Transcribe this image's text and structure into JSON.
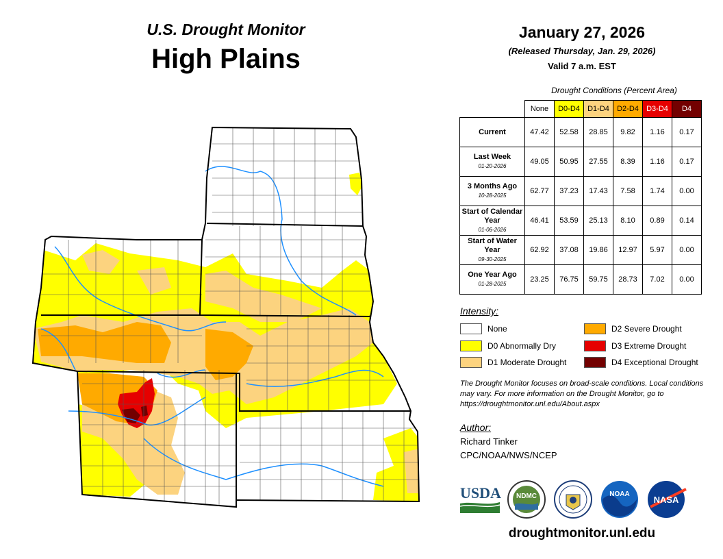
{
  "header": {
    "title": "U.S. Drought Monitor",
    "region": "High Plains"
  },
  "release": {
    "date": "January 27, 2026",
    "released": "(Released Thursday, Jan. 29, 2026)",
    "valid": "Valid 7 a.m. EST"
  },
  "table": {
    "caption": "Drought Conditions (Percent Area)",
    "columns": [
      "None",
      "D0-D4",
      "D1-D4",
      "D2-D4",
      "D3-D4",
      "D4"
    ],
    "column_colors": [
      "#ffffff",
      "#ffff00",
      "#fcd37f",
      "#ffaa00",
      "#e60000",
      "#730000"
    ],
    "rows": [
      {
        "label": "Current",
        "sublabel": "",
        "values": [
          "47.42",
          "52.58",
          "28.85",
          "9.82",
          "1.16",
          "0.17"
        ]
      },
      {
        "label": "Last Week",
        "sublabel": "01-20-2026",
        "values": [
          "49.05",
          "50.95",
          "27.55",
          "8.39",
          "1.16",
          "0.17"
        ]
      },
      {
        "label": "3 Months Ago",
        "sublabel": "10-28-2025",
        "values": [
          "62.77",
          "37.23",
          "17.43",
          "7.58",
          "1.74",
          "0.00"
        ]
      },
      {
        "label": "Start of Calendar Year",
        "sublabel": "01-06-2026",
        "values": [
          "46.41",
          "53.59",
          "25.13",
          "8.10",
          "0.89",
          "0.14"
        ]
      },
      {
        "label": "Start of Water Year",
        "sublabel": "09-30-2025",
        "values": [
          "62.92",
          "37.08",
          "19.86",
          "12.97",
          "5.97",
          "0.00"
        ]
      },
      {
        "label": "One Year Ago",
        "sublabel": "01-28-2025",
        "values": [
          "23.25",
          "76.75",
          "59.75",
          "28.73",
          "7.02",
          "0.00"
        ]
      }
    ]
  },
  "legend": {
    "title": "Intensity:",
    "items": [
      {
        "label": "None",
        "color": "#ffffff"
      },
      {
        "label": "D0 Abnormally Dry",
        "color": "#ffff00"
      },
      {
        "label": "D1 Moderate Drought",
        "color": "#fcd37f"
      },
      {
        "label": "D2 Severe Drought",
        "color": "#ffaa00"
      },
      {
        "label": "D3 Extreme Drought",
        "color": "#e60000"
      },
      {
        "label": "D4 Exceptional Drought",
        "color": "#730000"
      }
    ]
  },
  "note": "The Drought Monitor focuses on broad-scale conditions. Local conditions may vary. For more information on the Drought Monitor, go to https://droughtmonitor.unl.edu/About.aspx",
  "author": {
    "title": "Author:",
    "name": "Richard Tinker",
    "org": "CPC/NOAA/NWS/NCEP"
  },
  "logos": {
    "usda": "USDA",
    "ndmc": "NDMC",
    "noaa": "NOAA",
    "nasa": "NASA"
  },
  "website": "droughtmonitor.unl.edu"
}
